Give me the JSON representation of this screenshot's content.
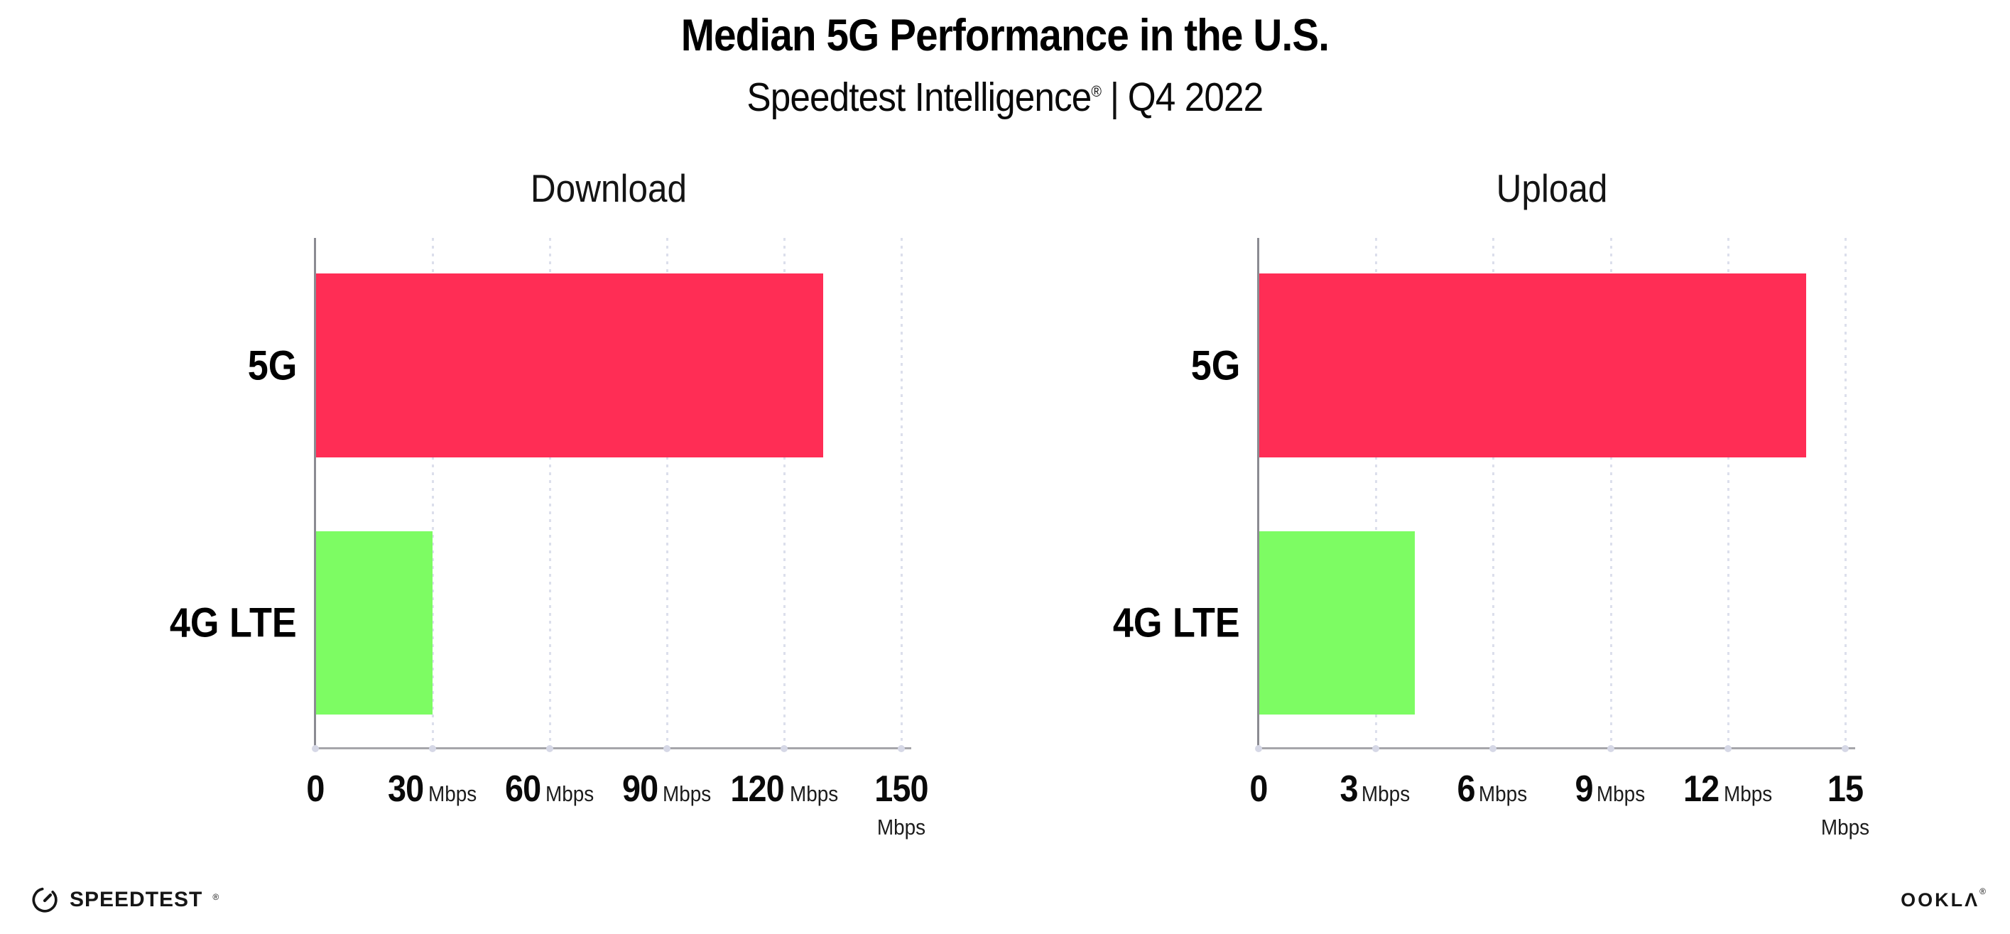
{
  "header": {
    "title": "Median 5G Performance in the U.S.",
    "subtitle_brand": "Speedtest Intelligence",
    "subtitle_reg": "®",
    "subtitle_separator": "|",
    "subtitle_period": "Q4 2022"
  },
  "colors": {
    "bar_5g": "#ff2d55",
    "bar_4g_lte": "#7dfc63",
    "axis_x_line": "#a6a6aa",
    "axis_y_line": "#8b8b92",
    "gridline": "#dcdfec",
    "text": "#000000"
  },
  "chart_data": [
    {
      "type": "bar",
      "orientation": "horizontal",
      "title": "Download",
      "categories": [
        "5G",
        "4G LTE"
      ],
      "values": [
        130,
        30
      ],
      "unit": "Mbps",
      "xlim": [
        0,
        150
      ],
      "xticks": [
        0,
        30,
        60,
        90,
        120,
        150
      ],
      "tick_unit": "Mbps",
      "bar_colors": [
        "#ff2d55",
        "#7dfc63"
      ],
      "grid": "dotted-vertical",
      "legend": "none"
    },
    {
      "type": "bar",
      "orientation": "horizontal",
      "title": "Upload",
      "categories": [
        "5G",
        "4G LTE"
      ],
      "values": [
        14,
        4
      ],
      "unit": "Mbps",
      "xlim": [
        0,
        15
      ],
      "xticks": [
        0,
        3,
        6,
        9,
        12,
        15
      ],
      "tick_unit": "Mbps",
      "bar_colors": [
        "#ff2d55",
        "#7dfc63"
      ],
      "grid": "dotted-vertical",
      "legend": "none"
    }
  ],
  "footer": {
    "speedtest_label": "SPEEDTEST",
    "speedtest_reg": "®",
    "ookla_label": "OOKLΛ",
    "ookla_reg": "®"
  }
}
